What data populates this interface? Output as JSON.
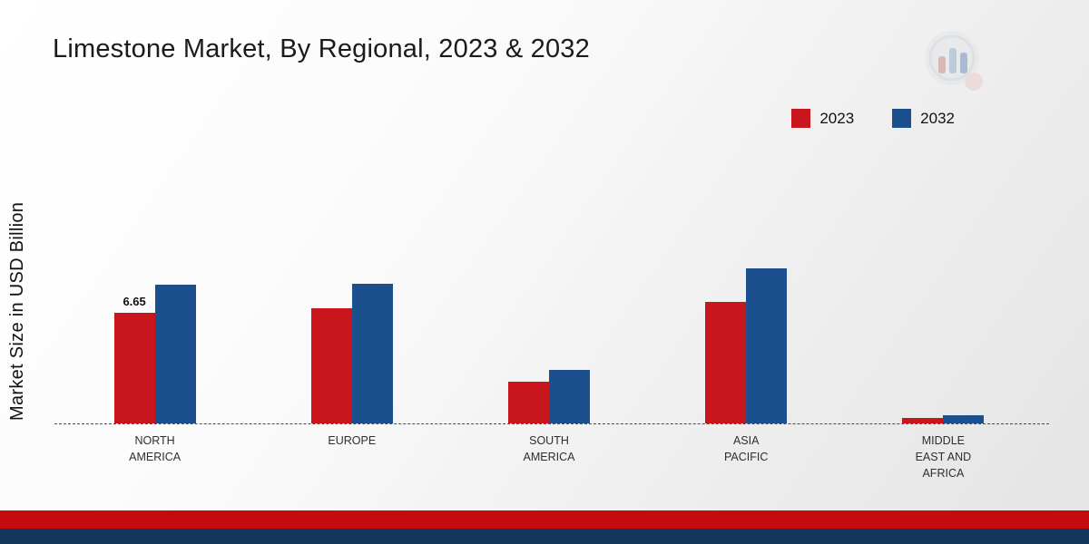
{
  "title": "Limestone Market, By Regional, 2023 & 2032",
  "y_axis_label": "Market Size in USD Billion",
  "colors": {
    "series_2023": "#c9151c",
    "series_2032": "#1c4f8e",
    "footer_red": "#c40b10",
    "footer_blue": "#15365c",
    "baseline": "#4a4a4a"
  },
  "logo": {
    "name": "brand-logo-icon"
  },
  "chart_data": {
    "type": "bar",
    "title": "Limestone Market, By Regional, 2023 & 2032",
    "xlabel": "",
    "ylabel": "Market Size in USD Billion",
    "ylim": [
      0,
      10
    ],
    "grid": false,
    "legend_position": "top-right",
    "categories": [
      "NORTH AMERICA",
      "EUROPE",
      "SOUTH AMERICA",
      "ASIA PACIFIC",
      "MIDDLE EAST AND AFRICA"
    ],
    "series": [
      {
        "name": "2023",
        "color": "#c9151c",
        "values": [
          6.65,
          6.9,
          2.5,
          7.3,
          0.35
        ]
      },
      {
        "name": "2032",
        "color": "#1c4f8e",
        "values": [
          8.3,
          8.35,
          3.2,
          9.3,
          0.5
        ]
      }
    ],
    "annotations": [
      {
        "series": "2023",
        "category_index": 0,
        "text": "6.65"
      }
    ]
  }
}
